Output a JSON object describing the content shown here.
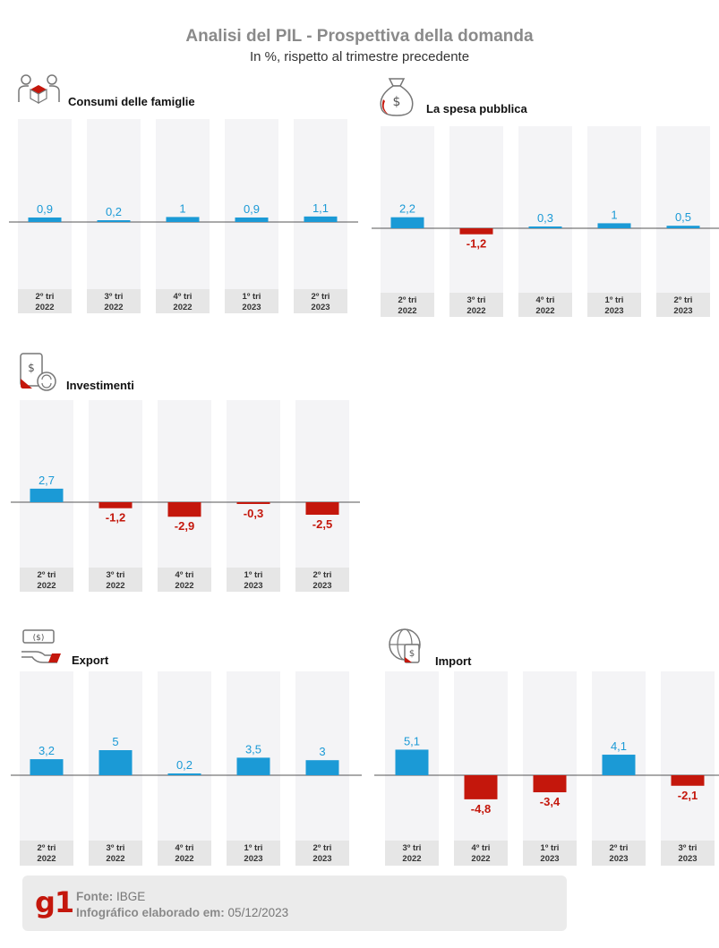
{
  "header": {
    "title": "Analisi del PIL - Prospettiva della domanda",
    "subtitle": "In %, rispetto al trimestre precedente"
  },
  "colors": {
    "positive": "#1b9ad6",
    "negative": "#c4170c",
    "column_bg": "#f4f4f6",
    "label_bg": "#e6e6e6"
  },
  "chart_data": [
    {
      "type": "bar",
      "title": "Consumi delle famiglie",
      "icon": "family-box-icon",
      "categories": [
        [
          "2º tri",
          "2022"
        ],
        [
          "3º tri",
          "2022"
        ],
        [
          "4º tri",
          "2022"
        ],
        [
          "1º tri",
          "2023"
        ],
        [
          "2º tri",
          "2023"
        ]
      ],
      "values": [
        0.9,
        0.2,
        1,
        0.9,
        1.1
      ],
      "value_labels": [
        "0,9",
        "0,2",
        "1",
        "0,9",
        "1,1"
      ]
    },
    {
      "type": "bar",
      "title": "La spesa pubblica",
      "icon": "money-bag-icon",
      "categories": [
        [
          "2º tri",
          "2022"
        ],
        [
          "3º tri",
          "2022"
        ],
        [
          "4º tri",
          "2022"
        ],
        [
          "1º tri",
          "2023"
        ],
        [
          "2º tri",
          "2023"
        ]
      ],
      "values": [
        2.2,
        -1.2,
        0.3,
        1,
        0.5
      ],
      "value_labels": [
        "2,2",
        "-1,2",
        "0,3",
        "1",
        "0,5"
      ]
    },
    {
      "type": "bar",
      "title": "Investimenti",
      "icon": "investment-phone-icon",
      "categories": [
        [
          "2º tri",
          "2022"
        ],
        [
          "3º tri",
          "2022"
        ],
        [
          "4º tri",
          "2022"
        ],
        [
          "1º tri",
          "2023"
        ],
        [
          "2º tri",
          "2023"
        ]
      ],
      "values": [
        2.7,
        -1.2,
        -2.9,
        -0.3,
        -2.5
      ],
      "value_labels": [
        "2,7",
        "-1,2",
        "-2,9",
        "-0,3",
        "-2,5"
      ]
    },
    {
      "type": "bar",
      "title": "Export",
      "icon": "export-cash-hand-icon",
      "categories": [
        [
          "2º tri",
          "2022"
        ],
        [
          "3º tri",
          "2022"
        ],
        [
          "4º tri",
          "2022"
        ],
        [
          "1º tri",
          "2023"
        ],
        [
          "2º tri",
          "2023"
        ]
      ],
      "values": [
        3.2,
        5,
        0.2,
        3.5,
        3
      ],
      "value_labels": [
        "3,2",
        "5",
        "0,2",
        "3,5",
        "3"
      ]
    },
    {
      "type": "bar",
      "title": "Import",
      "icon": "import-globe-icon",
      "categories": [
        [
          "3º tri",
          "2022"
        ],
        [
          "4º tri",
          "2022"
        ],
        [
          "1º tri",
          "2023"
        ],
        [
          "2º tri",
          "2023"
        ],
        [
          "3º tri",
          "2023"
        ]
      ],
      "values": [
        5.1,
        -4.8,
        -3.4,
        4.1,
        -2.1
      ],
      "value_labels": [
        "5,1",
        "-4,8",
        "-3,4",
        "4,1",
        "-2,1"
      ]
    }
  ],
  "footer": {
    "logo": "g1",
    "source_label": "Fonte:",
    "source_value": "IBGE",
    "date_label": "Infográfico elaborado em:",
    "date_value": "05/12/2023"
  }
}
